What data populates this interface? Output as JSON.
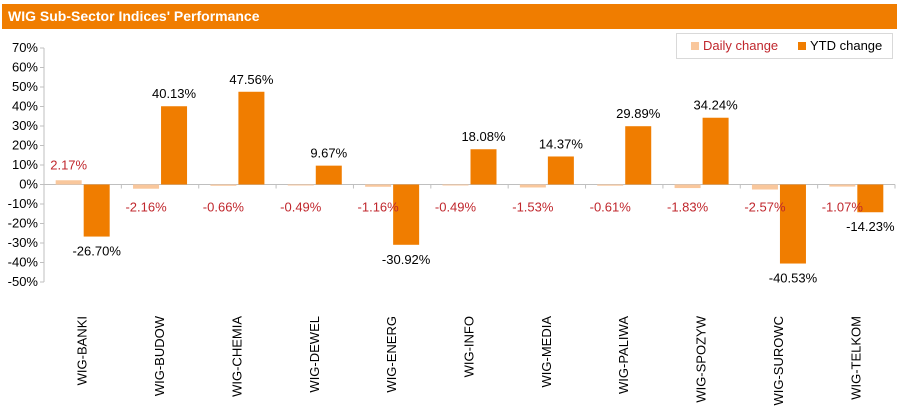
{
  "header": {
    "title": "WIG Sub-Sector Indices' Performance"
  },
  "colors": {
    "header_bg": "#f07d00",
    "daily": "#f9c79c",
    "ytd": "#f07d00",
    "daily_label": "#c0272d",
    "ytd_label": "#000000",
    "axis": "#bfbfbf"
  },
  "chart_data": {
    "type": "bar",
    "title": "WIG Sub-Sector Indices' Performance",
    "xlabel": "",
    "ylabel": "",
    "ylim": [
      -50,
      70
    ],
    "yticks": [
      "70%",
      "60%",
      "50%",
      "40%",
      "30%",
      "20%",
      "10%",
      "0%",
      "-10%",
      "-20%",
      "-30%",
      "-40%",
      "-50%"
    ],
    "grid": false,
    "legend_position": "top-right",
    "categories": [
      "WIG-BANKI",
      "WIG-BUDOW",
      "WIG-CHEMIA",
      "WIG-DEWEL",
      "WIG-ENERG",
      "WIG-INFO",
      "WIG-MEDIA",
      "WIG-PALIWA",
      "WIG-SPOZYW",
      "WIG-SUROWC",
      "WIG-TELKOM"
    ],
    "series": [
      {
        "name": "Daily change",
        "values": [
          2.17,
          -2.16,
          -0.66,
          -0.49,
          -1.16,
          -0.49,
          -1.53,
          -0.61,
          -1.83,
          -2.57,
          -1.07
        ],
        "labels": [
          "2.17%",
          "-2.16%",
          "-0.66%",
          "-0.49%",
          "-1.16%",
          "-0.49%",
          "-1.53%",
          "-0.61%",
          "-1.83%",
          "-2.57%",
          "-1.07%"
        ]
      },
      {
        "name": "YTD change",
        "values": [
          -26.7,
          40.13,
          47.56,
          9.67,
          -30.92,
          18.08,
          14.37,
          29.89,
          34.24,
          -40.53,
          -14.23
        ],
        "labels": [
          "-26.70%",
          "40.13%",
          "47.56%",
          "9.67%",
          "-30.92%",
          "18.08%",
          "14.37%",
          "29.89%",
          "34.24%",
          "-40.53%",
          "-14.23%"
        ]
      }
    ]
  }
}
